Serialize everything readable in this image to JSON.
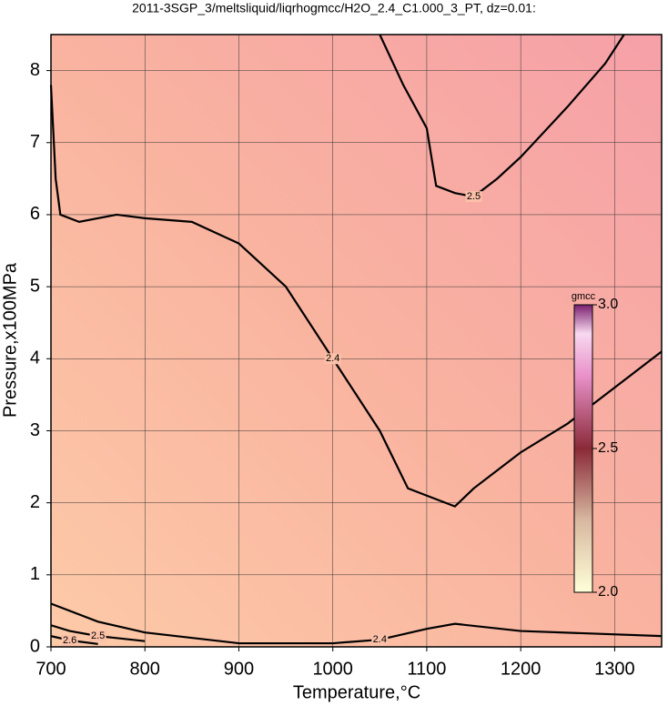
{
  "chart_data": {
    "type": "contour",
    "title": "2011-3SGP_3/meltsliquid/liqrhogmcc/H2O_2.4_C1.000_3_PT, dz=0.01:",
    "xlabel": "Temperature,°C",
    "ylabel": "Pressure,x100MPa",
    "xlim": [
      700,
      1350
    ],
    "ylim": [
      0,
      8.5
    ],
    "xticks": [
      700,
      800,
      900,
      1000,
      1100,
      1200,
      1300
    ],
    "yticks": [
      0,
      1,
      2,
      3,
      4,
      5,
      6,
      7,
      8
    ],
    "grid": true,
    "contours": [
      {
        "level": 2.5,
        "x": [
          1050,
          1075,
          1100,
          1110,
          1130,
          1150,
          1175,
          1200,
          1250,
          1290,
          1310
        ],
        "y": [
          8.5,
          7.8,
          7.2,
          6.4,
          6.3,
          6.25,
          6.5,
          6.8,
          7.5,
          8.1,
          8.5
        ]
      },
      {
        "level": 2.4,
        "x": [
          700,
          705,
          710,
          730,
          770,
          800,
          850,
          900,
          950,
          1000,
          1050,
          1080,
          1100,
          1130,
          1150,
          1200,
          1250,
          1300,
          1350
        ],
        "y": [
          7.8,
          6.5,
          6.0,
          5.9,
          6.0,
          5.95,
          5.9,
          5.6,
          5.0,
          4.0,
          3.0,
          2.2,
          2.1,
          1.95,
          2.2,
          2.7,
          3.1,
          3.6,
          4.1
        ]
      },
      {
        "level": 2.4,
        "x": [
          700,
          750,
          800,
          900,
          1000,
          1050,
          1100,
          1130,
          1200,
          1350
        ],
        "y": [
          0.6,
          0.35,
          0.2,
          0.05,
          0.05,
          0.1,
          0.25,
          0.32,
          0.22,
          0.15
        ]
      },
      {
        "level": 2.5,
        "x": [
          700,
          720,
          750,
          800
        ],
        "y": [
          0.3,
          0.22,
          0.15,
          0.08
        ]
      },
      {
        "level": 2.6,
        "x": [
          700,
          720,
          750
        ],
        "y": [
          0.15,
          0.09,
          0.04
        ]
      }
    ],
    "colorbar": {
      "label": "gmcc",
      "lim": [
        2.0,
        3.0
      ],
      "ticks": [
        {
          "value": 2,
          "label": "2.0"
        },
        {
          "value": 2.5,
          "label": "2.5"
        },
        {
          "value": 3,
          "label": "3.0"
        }
      ]
    }
  }
}
